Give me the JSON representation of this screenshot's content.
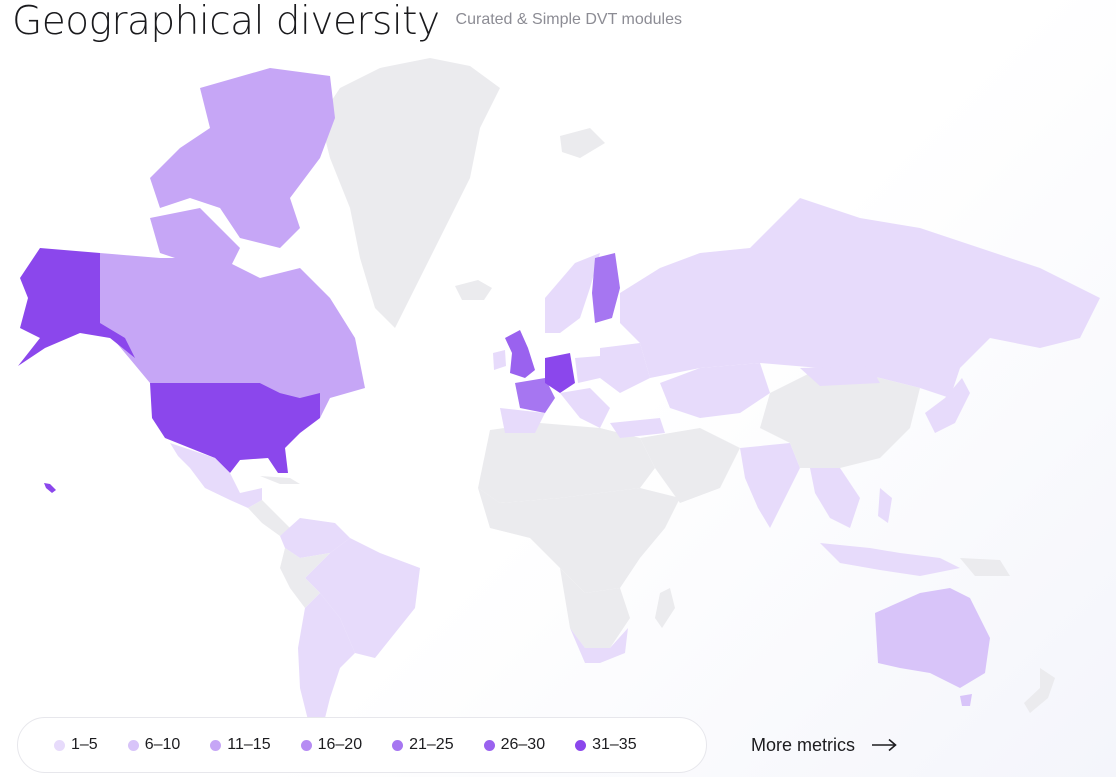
{
  "header": {
    "title": "Geographical diversity",
    "subtitle": "Curated & Simple DVT modules"
  },
  "legend": {
    "items": [
      {
        "label": "1–5",
        "color": "#e7dbfb"
      },
      {
        "label": "6–10",
        "color": "#d8c4f9"
      },
      {
        "label": "11–15",
        "color": "#c6a6f6"
      },
      {
        "label": "16–20",
        "color": "#b68cf3"
      },
      {
        "label": "21–25",
        "color": "#a676f1"
      },
      {
        "label": "26–30",
        "color": "#9a62ef"
      },
      {
        "label": "31–35",
        "color": "#8b47ec"
      }
    ]
  },
  "map": {
    "no_data_color": "#ebebee",
    "countries": [
      {
        "name": "United States",
        "bucket": "31–35"
      },
      {
        "name": "Alaska",
        "bucket": "31–35"
      },
      {
        "name": "Germany",
        "bucket": "31–35"
      },
      {
        "name": "United Kingdom",
        "bucket": "26–30"
      },
      {
        "name": "Finland",
        "bucket": "26–30"
      },
      {
        "name": "France",
        "bucket": "21–25"
      },
      {
        "name": "Canada",
        "bucket": "11–15"
      },
      {
        "name": "Australia",
        "bucket": "6–10"
      },
      {
        "name": "Russia",
        "bucket": "1–5"
      },
      {
        "name": "Brazil",
        "bucket": "1–5"
      }
    ]
  },
  "footer": {
    "more_metrics_label": "More metrics"
  },
  "icons": {
    "arrow": "arrow-right-icon"
  }
}
